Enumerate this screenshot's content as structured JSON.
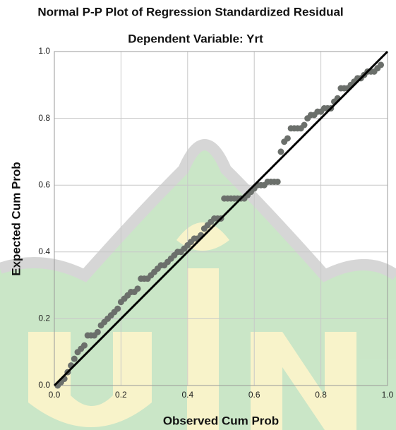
{
  "chart_data": {
    "type": "scatter",
    "title": "Normal P-P Plot of Regression Standardized Residual",
    "subtitle": "Dependent Variable: Yrt",
    "x_label": "Observed Cum Prob",
    "y_label": "Expected Cum Prob",
    "xlim": [
      0,
      1
    ],
    "ylim": [
      0,
      1
    ],
    "xticks": [
      {
        "value": 0,
        "label": "0.0"
      },
      0.2,
      0.4,
      0.6,
      0.8,
      {
        "value": 1,
        "label": "1.0"
      }
    ],
    "yticks": [
      {
        "value": 0,
        "label": "0.0"
      },
      0.2,
      0.4,
      0.6,
      0.8,
      {
        "value": 1,
        "label": "1.0"
      }
    ],
    "grid": true,
    "reference_line_color": "#000000",
    "color": "#6b6f6b",
    "x": [
      0.01,
      0.02,
      0.03,
      0.04,
      0.05,
      0.06,
      0.07,
      0.08,
      0.09,
      0.1,
      0.11,
      0.12,
      0.13,
      0.14,
      0.15,
      0.16,
      0.17,
      0.18,
      0.19,
      0.2,
      0.21,
      0.22,
      0.23,
      0.24,
      0.25,
      0.26,
      0.27,
      0.28,
      0.29,
      0.3,
      0.31,
      0.32,
      0.33,
      0.34,
      0.35,
      0.36,
      0.37,
      0.38,
      0.39,
      0.4,
      0.41,
      0.42,
      0.43,
      0.44,
      0.45,
      0.46,
      0.47,
      0.48,
      0.49,
      0.5,
      0.51,
      0.52,
      0.53,
      0.54,
      0.55,
      0.56,
      0.57,
      0.58,
      0.59,
      0.6,
      0.61,
      0.62,
      0.63,
      0.64,
      0.65,
      0.66,
      0.67,
      0.68,
      0.69,
      0.7,
      0.71,
      0.72,
      0.73,
      0.74,
      0.75,
      0.76,
      0.77,
      0.78,
      0.79,
      0.8,
      0.81,
      0.82,
      0.83,
      0.84,
      0.85,
      0.86,
      0.87,
      0.88,
      0.89,
      0.9,
      0.91,
      0.92,
      0.93,
      0.94,
      0.95,
      0.96,
      0.97,
      0.98
    ],
    "values": [
      0.0,
      0.01,
      0.02,
      0.04,
      0.06,
      0.08,
      0.1,
      0.11,
      0.12,
      0.15,
      0.15,
      0.15,
      0.16,
      0.18,
      0.19,
      0.2,
      0.21,
      0.22,
      0.23,
      0.25,
      0.26,
      0.27,
      0.28,
      0.28,
      0.29,
      0.32,
      0.32,
      0.32,
      0.33,
      0.34,
      0.35,
      0.36,
      0.36,
      0.37,
      0.38,
      0.39,
      0.4,
      0.4,
      0.41,
      0.42,
      0.43,
      0.44,
      0.44,
      0.45,
      0.47,
      0.48,
      0.49,
      0.5,
      0.5,
      0.5,
      0.56,
      0.56,
      0.56,
      0.56,
      0.56,
      0.56,
      0.56,
      0.57,
      0.58,
      0.59,
      0.6,
      0.6,
      0.6,
      0.61,
      0.61,
      0.61,
      0.61,
      0.7,
      0.73,
      0.74,
      0.77,
      0.77,
      0.77,
      0.77,
      0.78,
      0.8,
      0.81,
      0.81,
      0.82,
      0.82,
      0.83,
      0.83,
      0.83,
      0.85,
      0.86,
      0.89,
      0.89,
      0.89,
      0.9,
      0.91,
      0.92,
      0.92,
      0.93,
      0.94,
      0.94,
      0.94,
      0.95,
      0.96
    ]
  }
}
